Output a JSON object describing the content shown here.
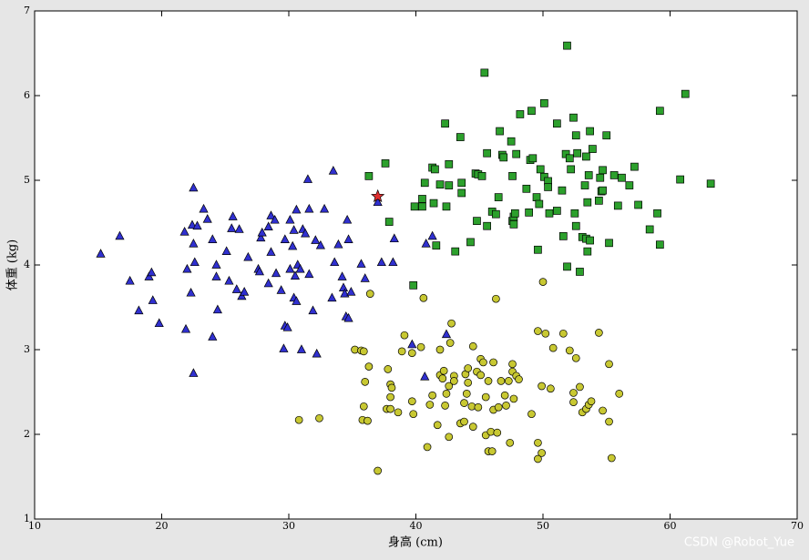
{
  "chart_data": {
    "type": "scatter",
    "xlabel": "身高 (cm)",
    "ylabel": "体重 (kg)",
    "watermark": "CSDN @Robot_Yue",
    "xlim": [
      10,
      70
    ],
    "ylim": [
      1,
      7
    ],
    "xticks": [
      10,
      20,
      30,
      40,
      50,
      60,
      70
    ],
    "yticks": [
      1,
      2,
      3,
      4,
      5,
      6,
      7
    ],
    "series": [
      {
        "marker": "^",
        "color": "#3030d0",
        "x": [
          15.2,
          16.7,
          17.5,
          18.2,
          19.0,
          19.2,
          19.3,
          19.8,
          21.8,
          21.9,
          22.0,
          22.3,
          22.4,
          22.5,
          22.5,
          22.5,
          22.6,
          22.8,
          23.3,
          23.6,
          24.0,
          24.0,
          24.3,
          24.3,
          24.4,
          25.1,
          25.3,
          25.5,
          25.6,
          25.9,
          26.1,
          26.3,
          26.5,
          26.8,
          27.6,
          27.7,
          27.8,
          27.9,
          28.4,
          28.4,
          28.6,
          28.6,
          28.9,
          29.0,
          29.4,
          29.6,
          29.7,
          29.7,
          29.9,
          30.1,
          30.1,
          30.3,
          30.4,
          30.4,
          30.5,
          30.6,
          30.6,
          30.7,
          30.9,
          31.0,
          31.1,
          31.3,
          31.5,
          31.6,
          31.6,
          31.9,
          32.1,
          32.2,
          32.5,
          32.8,
          33.4,
          33.5,
          33.6,
          33.9,
          34.2,
          34.3,
          34.4,
          34.5,
          34.6,
          34.7,
          34.7,
          34.9,
          35.7,
          36.0,
          37.0,
          37.3,
          38.2,
          38.3,
          39.7,
          40.7,
          40.8,
          41.3,
          42.4
        ],
        "values": [
          4.13,
          4.34,
          3.81,
          3.46,
          3.86,
          3.91,
          3.58,
          3.31,
          4.39,
          3.24,
          3.95,
          3.67,
          4.47,
          2.72,
          4.91,
          4.25,
          4.03,
          4.46,
          4.66,
          4.54,
          3.15,
          4.3,
          4.0,
          3.86,
          3.47,
          4.16,
          3.81,
          4.43,
          4.57,
          3.71,
          4.42,
          3.63,
          3.68,
          4.09,
          3.95,
          3.92,
          4.32,
          4.38,
          4.45,
          3.78,
          4.58,
          4.15,
          4.53,
          3.9,
          3.7,
          3.01,
          4.3,
          3.28,
          3.26,
          4.53,
          3.95,
          4.22,
          4.41,
          3.61,
          3.87,
          4.65,
          3.57,
          4.0,
          3.95,
          3.0,
          4.42,
          4.37,
          5.01,
          4.66,
          3.89,
          3.46,
          4.29,
          2.95,
          4.23,
          4.66,
          3.61,
          5.11,
          4.03,
          4.24,
          3.86,
          3.73,
          3.66,
          3.39,
          4.53,
          3.37,
          4.3,
          3.68,
          4.01,
          3.84,
          4.74,
          4.03,
          4.03,
          4.31,
          3.06,
          2.68,
          4.25,
          4.34,
          3.18
        ]
      },
      {
        "marker": "s",
        "color": "#2ca02c",
        "x": [
          36.3,
          37.6,
          37.9,
          39.8,
          39.9,
          40.5,
          40.5,
          40.7,
          41.3,
          41.4,
          41.5,
          41.6,
          41.9,
          42.3,
          42.4,
          42.6,
          42.6,
          43.1,
          43.5,
          43.6,
          43.6,
          44.3,
          44.7,
          44.8,
          44.9,
          45.2,
          45.4,
          45.6,
          45.6,
          46.0,
          46.3,
          46.5,
          46.6,
          46.8,
          46.9,
          47.5,
          47.6,
          47.6,
          47.7,
          47.7,
          47.8,
          47.9,
          48.2,
          48.7,
          48.9,
          49.0,
          49.1,
          49.2,
          49.5,
          49.6,
          49.7,
          49.8,
          50.1,
          50.1,
          50.4,
          50.4,
          50.5,
          51.1,
          51.1,
          51.5,
          51.6,
          51.8,
          51.9,
          51.9,
          52.1,
          52.2,
          52.4,
          52.5,
          52.6,
          52.6,
          52.7,
          52.9,
          53.1,
          53.3,
          53.4,
          53.4,
          53.5,
          53.5,
          53.6,
          53.7,
          53.7,
          53.9,
          54.4,
          54.5,
          54.6,
          54.7,
          54.7,
          55.0,
          55.2,
          55.6,
          55.9,
          56.2,
          56.8,
          57.2,
          57.5,
          58.4,
          59.0,
          59.2,
          59.2,
          60.8,
          61.2,
          63.2
        ],
        "values": [
          5.05,
          5.2,
          4.51,
          3.76,
          4.69,
          4.78,
          4.69,
          4.97,
          5.15,
          4.73,
          5.13,
          4.23,
          4.95,
          5.67,
          4.69,
          4.94,
          5.19,
          4.16,
          5.51,
          4.97,
          4.85,
          4.27,
          5.08,
          4.52,
          5.07,
          5.05,
          6.27,
          4.46,
          5.32,
          4.63,
          4.6,
          4.8,
          5.58,
          5.3,
          5.27,
          5.46,
          5.05,
          4.52,
          4.57,
          4.48,
          4.61,
          5.31,
          5.78,
          4.9,
          4.62,
          5.24,
          5.82,
          5.26,
          4.8,
          4.18,
          4.72,
          5.13,
          5.91,
          5.04,
          4.99,
          4.92,
          4.61,
          5.67,
          4.64,
          4.88,
          4.34,
          5.31,
          6.59,
          3.98,
          5.26,
          5.13,
          5.74,
          4.61,
          4.46,
          5.53,
          5.32,
          3.92,
          4.33,
          4.94,
          5.28,
          4.31,
          4.74,
          4.16,
          5.06,
          5.58,
          4.29,
          5.37,
          4.76,
          5.03,
          4.87,
          5.12,
          4.88,
          5.53,
          4.26,
          5.06,
          4.7,
          5.03,
          4.94,
          5.16,
          4.71,
          4.42,
          4.61,
          5.82,
          4.24,
          5.01,
          6.02,
          4.96
        ]
      },
      {
        "marker": "o",
        "color": "#c8c832",
        "x": [
          30.8,
          32.4,
          35.2,
          35.7,
          35.9,
          35.9,
          35.8,
          36.0,
          36.2,
          36.3,
          36.4,
          37.0,
          37.7,
          37.8,
          38.0,
          38.0,
          38.0,
          38.1,
          38.6,
          38.9,
          39.1,
          39.7,
          39.7,
          39.8,
          40.4,
          40.6,
          40.9,
          41.1,
          41.3,
          41.7,
          41.9,
          41.9,
          42.1,
          42.2,
          42.3,
          42.4,
          42.6,
          42.6,
          42.7,
          42.8,
          43.0,
          43.0,
          43.5,
          43.8,
          43.8,
          43.9,
          44.0,
          44.1,
          44.1,
          44.4,
          44.5,
          44.5,
          44.8,
          44.9,
          45.1,
          45.1,
          45.3,
          45.5,
          45.5,
          45.7,
          45.7,
          45.9,
          46.0,
          46.1,
          46.1,
          46.3,
          46.4,
          46.5,
          46.7,
          47.0,
          47.1,
          47.3,
          47.4,
          47.6,
          47.6,
          47.7,
          47.9,
          48.1,
          49.1,
          49.6,
          49.6,
          49.6,
          49.9,
          49.9,
          50.0,
          50.2,
          50.6,
          50.8,
          51.6,
          52.1,
          52.4,
          52.4,
          52.6,
          52.9,
          53.1,
          53.4,
          53.6,
          53.8,
          54.4,
          54.7,
          55.2,
          55.2,
          55.4,
          56.0
        ],
        "values": [
          2.17,
          2.19,
          3.0,
          2.99,
          2.98,
          2.33,
          2.17,
          2.62,
          2.16,
          2.8,
          3.66,
          1.57,
          2.3,
          2.77,
          2.44,
          2.3,
          2.59,
          2.55,
          2.26,
          2.98,
          3.17,
          2.96,
          2.39,
          2.24,
          3.03,
          3.61,
          1.85,
          2.35,
          2.46,
          2.11,
          3.0,
          2.7,
          2.66,
          2.75,
          2.34,
          2.48,
          2.57,
          1.97,
          3.08,
          3.31,
          2.69,
          2.63,
          2.13,
          2.37,
          2.15,
          2.71,
          2.48,
          2.78,
          2.61,
          2.33,
          3.04,
          2.09,
          2.74,
          2.32,
          2.89,
          2.7,
          2.85,
          2.44,
          1.99,
          2.63,
          1.8,
          2.03,
          1.8,
          2.29,
          2.85,
          3.6,
          2.02,
          2.32,
          2.63,
          2.46,
          2.34,
          2.63,
          1.9,
          2.83,
          2.74,
          2.42,
          2.69,
          2.65,
          2.24,
          3.22,
          1.9,
          1.71,
          2.57,
          1.78,
          3.8,
          3.19,
          2.54,
          3.02,
          3.19,
          2.99,
          2.49,
          2.38,
          2.9,
          2.56,
          2.26,
          2.3,
          2.35,
          2.39,
          3.2,
          2.28,
          2.15,
          2.83,
          1.72,
          2.48
        ]
      },
      {
        "marker": "*",
        "color": "#e03030",
        "x": [
          37.0
        ],
        "values": [
          4.81
        ]
      }
    ]
  }
}
